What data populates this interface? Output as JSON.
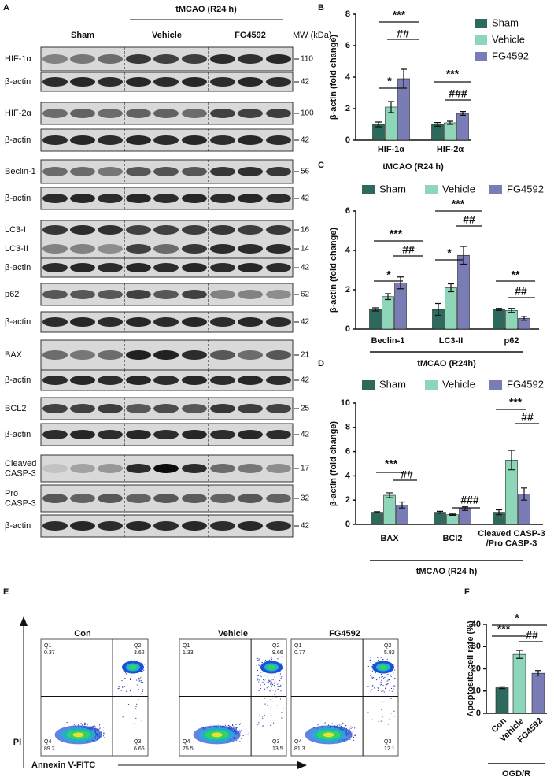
{
  "panel_a": {
    "label": "A",
    "condition": "tMCAO (R24 h)",
    "groups": [
      "Sham",
      "Vehicle",
      "FG4592"
    ],
    "mw_header": "MW (kDa)",
    "blots": [
      {
        "labels": [
          "HIF-1α"
        ],
        "mw": [
          110
        ]
      },
      {
        "labels": [
          "β-actin"
        ],
        "mw": [
          42
        ]
      },
      {
        "labels": [
          "HIF-2α"
        ],
        "mw": [
          100
        ]
      },
      {
        "labels": [
          "β-actin"
        ],
        "mw": [
          42
        ]
      },
      {
        "labels": [
          "Beclin-1"
        ],
        "mw": [
          56
        ]
      },
      {
        "labels": [
          "β-actin"
        ],
        "mw": [
          42
        ]
      },
      {
        "labels": [
          "LC3-I",
          "LC3-II"
        ],
        "mw": [
          16,
          14
        ]
      },
      {
        "labels": [
          "β-actin"
        ],
        "mw": [
          42
        ]
      },
      {
        "labels": [
          "p62"
        ],
        "mw": [
          62
        ]
      },
      {
        "labels": [
          "β-actin"
        ],
        "mw": [
          42
        ]
      },
      {
        "labels": [
          "BAX"
        ],
        "mw": [
          21
        ]
      },
      {
        "labels": [
          "β-actin"
        ],
        "mw": [
          42
        ]
      },
      {
        "labels": [
          "BCL2"
        ],
        "mw": [
          25
        ]
      },
      {
        "labels": [
          "β-actin"
        ],
        "mw": [
          42
        ]
      },
      {
        "labels": [
          "Cleaved\nCASP-3"
        ],
        "mw": [
          17
        ]
      },
      {
        "labels": [
          "Pro\nCASP-3"
        ],
        "mw": [
          32
        ]
      },
      {
        "labels": [
          "β-actin"
        ],
        "mw": [
          42
        ]
      }
    ]
  },
  "panel_e": {
    "label": "E",
    "y_axis": "PI",
    "x_axis": "Annexin V-FITC",
    "plots": [
      {
        "title": "Con",
        "quadrants": [
          {
            "name": "Q1",
            "value": 0.37
          },
          {
            "name": "Q2",
            "value": 3.62
          },
          {
            "name": "Q3",
            "value": 6.65
          },
          {
            "name": "Q4",
            "value": 89.2
          }
        ]
      },
      {
        "title": "Vehicle",
        "quadrants": [
          {
            "name": "Q1",
            "value": 1.33
          },
          {
            "name": "Q2",
            "value": 9.66
          },
          {
            "name": "Q3",
            "value": 13.5
          },
          {
            "name": "Q4",
            "value": 75.5
          }
        ]
      },
      {
        "title": "FG4592",
        "quadrants": [
          {
            "name": "Q1",
            "value": 0.77
          },
          {
            "name": "Q2",
            "value": 5.82
          },
          {
            "name": "Q3",
            "value": 12.1
          },
          {
            "name": "Q4",
            "value": 81.3
          }
        ]
      }
    ]
  },
  "chart_data": [
    {
      "type": "bar",
      "label": "B",
      "ylabel": "β-actin (fold change)",
      "xlabel": "tMCAO (R24 h)",
      "categories": [
        "HIF-1α",
        "HIF-2α"
      ],
      "series": [
        {
          "name": "Sham",
          "color": "#2d6a5d",
          "values": [
            1.0,
            1.0
          ],
          "errors": [
            0.15,
            0.12
          ]
        },
        {
          "name": "Vehicle",
          "color": "#8ed6b9",
          "values": [
            2.1,
            1.1
          ],
          "errors": [
            0.35,
            0.1
          ]
        },
        {
          "name": "FG4592",
          "color": "#7a7db5",
          "values": [
            3.9,
            1.7
          ],
          "errors": [
            0.6,
            0.12
          ]
        }
      ],
      "ylim": [
        0,
        8
      ],
      "yticks": [
        0,
        2,
        4,
        6,
        8
      ],
      "legend": "right",
      "annotations": [
        "***",
        "##",
        "*",
        "***",
        "###"
      ]
    },
    {
      "type": "bar",
      "label": "C",
      "ylabel": "β-actin (fold change)",
      "xlabel": "tMCAO (R24h)",
      "categories": [
        "Beclin-1",
        "LC3-II",
        "p62"
      ],
      "series": [
        {
          "name": "Sham",
          "color": "#2d6a5d",
          "values": [
            1.0,
            1.0,
            1.0
          ],
          "errors": [
            0.08,
            0.3,
            0.05
          ]
        },
        {
          "name": "Vehicle",
          "color": "#8ed6b9",
          "values": [
            1.65,
            2.1,
            0.95
          ],
          "errors": [
            0.15,
            0.2,
            0.1
          ]
        },
        {
          "name": "FG4592",
          "color": "#7a7db5",
          "values": [
            2.35,
            3.75,
            0.55
          ],
          "errors": [
            0.3,
            0.45,
            0.1
          ]
        }
      ],
      "ylim": [
        0,
        6
      ],
      "yticks": [
        0,
        2,
        4,
        6
      ],
      "legend": "top",
      "annotations": [
        "***",
        "##",
        "*",
        "***",
        "##",
        "*",
        "**",
        "##"
      ]
    },
    {
      "type": "bar",
      "label": "D",
      "ylabel": "β-actin (fold change)",
      "xlabel": "tMCAO (R24 h)",
      "categories": [
        "BAX",
        "BCl2",
        "Cleaved CASP-3\n/Pro CASP-3"
      ],
      "series": [
        {
          "name": "Sham",
          "color": "#2d6a5d",
          "values": [
            1.0,
            1.0,
            1.0
          ],
          "errors": [
            0.05,
            0.08,
            0.2
          ]
        },
        {
          "name": "Vehicle",
          "color": "#8ed6b9",
          "values": [
            2.4,
            0.8,
            5.3
          ],
          "errors": [
            0.2,
            0.05,
            0.8
          ]
        },
        {
          "name": "FG4592",
          "color": "#7a7db5",
          "values": [
            1.6,
            1.3,
            2.5
          ],
          "errors": [
            0.25,
            0.15,
            0.5
          ]
        }
      ],
      "ylim": [
        0,
        10
      ],
      "yticks": [
        0,
        2,
        4,
        6,
        8,
        10
      ],
      "legend": "top",
      "annotations": [
        "***",
        "##",
        "###",
        "***",
        "##"
      ]
    },
    {
      "type": "bar",
      "label": "F",
      "ylabel": "Apoptositc cell rate (%)",
      "xlabel": "OGD/R",
      "categories": [
        "Con",
        "Vehicle",
        "FG4592"
      ],
      "values": [
        11.5,
        26.5,
        18
      ],
      "errors": [
        0.4,
        1.8,
        1.2
      ],
      "colors": [
        "#2d6a5d",
        "#8ed6b9",
        "#7a7db5"
      ],
      "ylim": [
        0,
        40
      ],
      "yticks": [
        0,
        10,
        20,
        30,
        40
      ],
      "annotations": [
        "*",
        "***",
        "##"
      ]
    }
  ]
}
